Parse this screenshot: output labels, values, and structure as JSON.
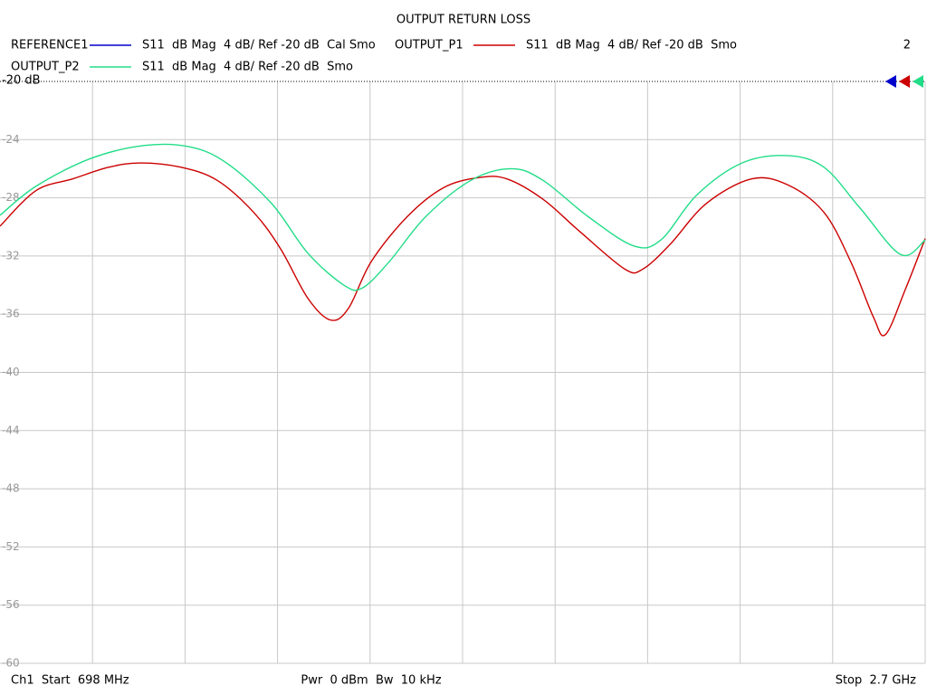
{
  "chart_data": {
    "type": "line",
    "title": "OUTPUT RETURN LOSS",
    "xlim": [
      698,
      2700
    ],
    "ylim": [
      -60,
      -20
    ],
    "yticks": [
      {
        "value": -20,
        "label": "-20 dB"
      },
      -24,
      -28,
      -32,
      -36,
      -40,
      -44,
      -48,
      -52,
      -56,
      -60
    ],
    "grid": true,
    "marker_label": "2",
    "footer": {
      "left": "Ch1  Start  698 MHz",
      "center": "Pwr  0 dBm  Bw  10 kHz",
      "right": "Stop  2.7 GHz"
    },
    "series": [
      {
        "name": "REFERENCE1",
        "description": "S11  dB Mag  4 dB/ Ref -20 dB  Cal Smo",
        "color": "#0000cc",
        "x": [],
        "values": []
      },
      {
        "name": "OUTPUT_P1",
        "description": "S11  dB Mag  4 dB/ Ref -20 dB  Smo",
        "color": "#cc0000",
        "x": [
          698,
          776,
          855,
          933,
          1002,
          1090,
          1168,
          1247,
          1305,
          1364,
          1413,
          1452,
          1501,
          1579,
          1658,
          1736,
          1795,
          1873,
          1952,
          2050,
          2089,
          2148,
          2226,
          2324,
          2402,
          2481,
          2539,
          2588,
          2614,
          2657,
          2700
        ],
        "values": [
          -29.95,
          -27.5,
          -26.7,
          -25.9,
          -25.6,
          -25.9,
          -26.8,
          -29.0,
          -31.5,
          -34.9,
          -36.4,
          -35.6,
          -32.4,
          -29.3,
          -27.3,
          -26.6,
          -26.7,
          -28.1,
          -30.3,
          -32.9,
          -32.9,
          -31.2,
          -28.4,
          -26.7,
          -27.1,
          -29.0,
          -32.4,
          -36.2,
          -37.4,
          -34.3,
          -30.8
        ]
      },
      {
        "name": "OUTPUT_P2",
        "description": "S11  dB Mag  4 dB/ Ref -20 dB  Smo",
        "color": "#22dd88",
        "x": [
          698,
          776,
          894,
          1011,
          1109,
          1188,
          1286,
          1364,
          1442,
          1482,
          1540,
          1619,
          1717,
          1805,
          1873,
          1971,
          2069,
          2128,
          2206,
          2304,
          2402,
          2481,
          2559,
          2647,
          2700
        ],
        "values": [
          -29.2,
          -27.2,
          -25.3,
          -24.4,
          -24.5,
          -25.6,
          -28.4,
          -31.8,
          -34.0,
          -34.2,
          -32.4,
          -29.3,
          -26.8,
          -26.0,
          -26.8,
          -29.3,
          -31.3,
          -30.9,
          -27.8,
          -25.6,
          -25.1,
          -25.9,
          -28.7,
          -31.9,
          -30.9
        ]
      }
    ]
  }
}
